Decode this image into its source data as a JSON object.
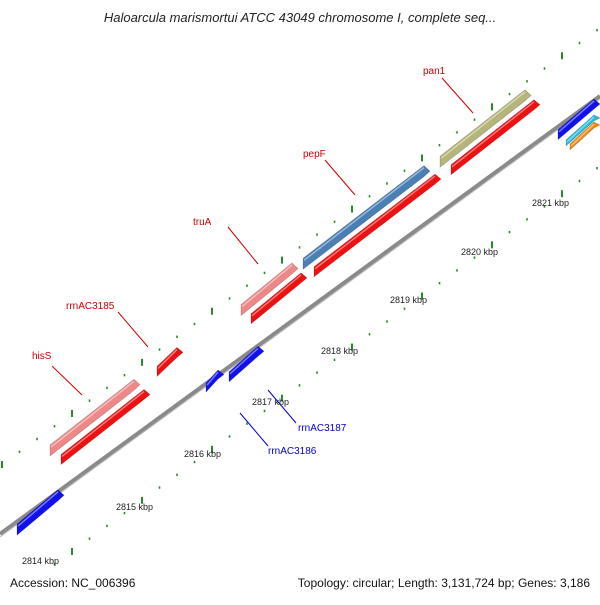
{
  "title": "Haloarcula marismortui ATCC 43049 chromosome I, complete seq...",
  "accession_label": "Accession: NC_006396",
  "summary_label": "Topology: circular; Length: 3,131,724 bp; Genes: 3,186",
  "colors": {
    "backbone": "#7a7a7a",
    "tick": "#2a8a2a",
    "gene_forward_label": "#cc0000",
    "gene_reverse_label": "#0000cc"
  },
  "scale_labels": [
    "2814 kbp",
    "2815 kbp",
    "2816 kbp",
    "2817 kbp",
    "2818 kbp",
    "2819 kbp",
    "2820 kbp",
    "2821 kbp"
  ],
  "gene_labels": [
    {
      "text": "hisS",
      "color": "#cc0000"
    },
    {
      "text": "rrnAC3185",
      "color": "#cc0000"
    },
    {
      "text": "truA",
      "color": "#cc0000"
    },
    {
      "text": "pepF",
      "color": "#cc0000"
    },
    {
      "text": "pan1",
      "color": "#cc0000"
    },
    {
      "text": "rrnAC3187",
      "color": "#0000cc"
    },
    {
      "text": "rrnAC3186",
      "color": "#0000cc"
    }
  ],
  "features": [
    {
      "name": "hisS",
      "color": "#ee8888"
    },
    {
      "name": "hisS-cds",
      "color": "#ee1111"
    },
    {
      "name": "rrnAC3185",
      "color": "#ee1111"
    },
    {
      "name": "truA",
      "color": "#ee8888"
    },
    {
      "name": "truA-cds",
      "color": "#ee1111"
    },
    {
      "name": "pepF",
      "color": "#4a7fb5"
    },
    {
      "name": "pepF-cds",
      "color": "#ee1111"
    },
    {
      "name": "pan1",
      "color": "#b5b57a"
    },
    {
      "name": "pan1-cds",
      "color": "#ee1111"
    },
    {
      "name": "rrnAC3186",
      "color": "#1111ee"
    },
    {
      "name": "rrnAC3187",
      "color": "#1111ee"
    },
    {
      "name": "lower-left-gene",
      "color": "#1111ee"
    },
    {
      "name": "right-edge-gene-blue",
      "color": "#1111ee"
    },
    {
      "name": "right-edge-gene-cyan",
      "color": "#22bbdd"
    },
    {
      "name": "right-edge-gene-orange",
      "color": "#ee8811"
    }
  ]
}
